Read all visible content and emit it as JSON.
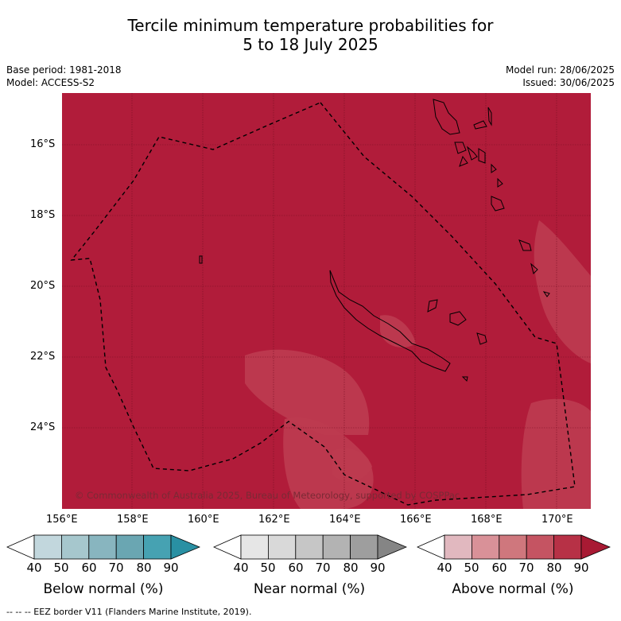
{
  "title_line1": "Tercile minimum temperature probabilities for",
  "title_line2": "5 to 18 July 2025",
  "base_period": "Base period: 1981-2018",
  "model": "Model: ACCESS-S2",
  "model_run": "Model run: 28/06/2025",
  "issued": "Issued: 30/06/2025",
  "copyright": "© Commonwealth of Australia 2025, Bureau of Meteorology, supported by COSPPac",
  "lat_labels": [
    "16°S",
    "18°S",
    "20°S",
    "22°S",
    "24°S"
  ],
  "lon_labels": [
    "156°E",
    "158°E",
    "160°E",
    "162°E",
    "164°E",
    "166°E",
    "168°E",
    "170°E"
  ],
  "legends": [
    {
      "title": "Below normal (%)",
      "ticks": [
        "40",
        "50",
        "60",
        "70",
        "80",
        "90"
      ],
      "colors": [
        "#ffffff",
        "#c2d7dd",
        "#a6c7cd",
        "#88b5bf",
        "#6aa6b2",
        "#46a2b2",
        "#2990a3"
      ]
    },
    {
      "title": "Near normal (%)",
      "ticks": [
        "40",
        "50",
        "60",
        "70",
        "80",
        "90"
      ],
      "colors": [
        "#ffffff",
        "#e6e6e6",
        "#d9d9d9",
        "#c6c6c6",
        "#b3b3b3",
        "#9e9e9e",
        "#858585"
      ]
    },
    {
      "title": "Above normal (%)",
      "ticks": [
        "40",
        "50",
        "60",
        "70",
        "80",
        "90"
      ],
      "colors": [
        "#ffffff",
        "#e1b8bf",
        "#d99198",
        "#cf777d",
        "#c55462",
        "#b73146",
        "#a81a33"
      ]
    }
  ],
  "footer": "--  --  -- EEZ border V11 (Flanders Marine Institute, 2019).",
  "map_colors": {
    "dominant": "#b11c3a",
    "lighter": "#bd3a4f",
    "land_outline": "#000000"
  }
}
